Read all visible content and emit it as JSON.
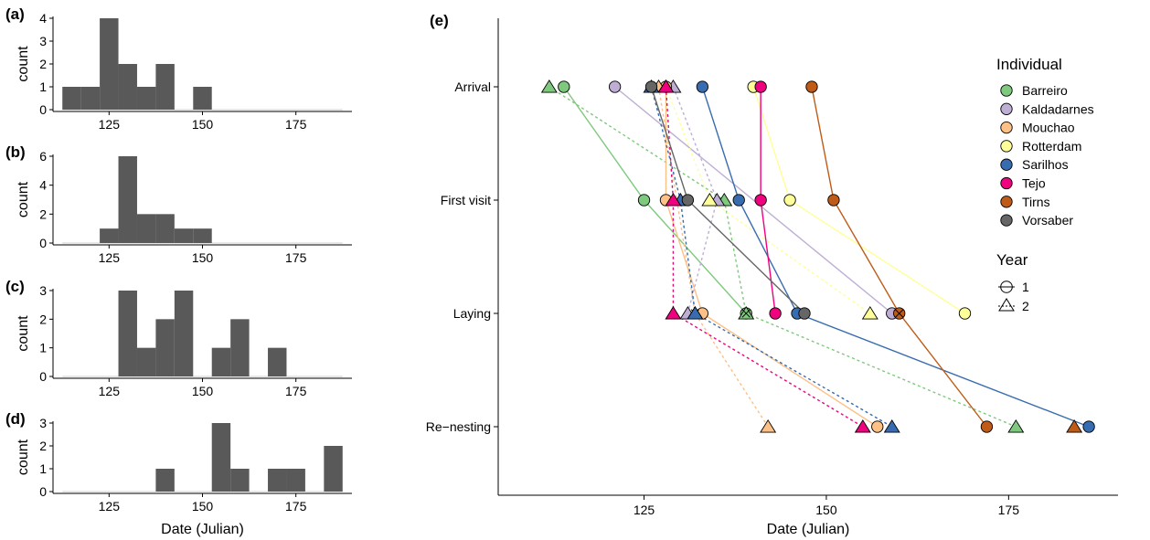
{
  "chart_data": [
    {
      "panel": "(a)",
      "type": "bar",
      "ylabel": "count",
      "xlim": [
        110,
        190
      ],
      "ylim": [
        0,
        4
      ],
      "xticks": [
        125,
        150,
        175
      ],
      "yticks": [
        0,
        1,
        2,
        3,
        4
      ],
      "bin_width": 5,
      "bins": [
        {
          "start": 112.5,
          "count": 1
        },
        {
          "start": 117.5,
          "count": 1
        },
        {
          "start": 122.5,
          "count": 4
        },
        {
          "start": 127.5,
          "count": 2
        },
        {
          "start": 132.5,
          "count": 1
        },
        {
          "start": 137.5,
          "count": 2
        },
        {
          "start": 147.5,
          "count": 1
        }
      ]
    },
    {
      "panel": "(b)",
      "type": "bar",
      "ylabel": "count",
      "xlim": [
        110,
        190
      ],
      "ylim": [
        0,
        6
      ],
      "xticks": [
        125,
        150,
        175
      ],
      "yticks": [
        0,
        2,
        4,
        6
      ],
      "bin_width": 5,
      "bins": [
        {
          "start": 122.5,
          "count": 1
        },
        {
          "start": 127.5,
          "count": 6
        },
        {
          "start": 132.5,
          "count": 2
        },
        {
          "start": 137.5,
          "count": 2
        },
        {
          "start": 142.5,
          "count": 1
        },
        {
          "start": 147.5,
          "count": 1
        }
      ]
    },
    {
      "panel": "(c)",
      "type": "bar",
      "ylabel": "count",
      "xlim": [
        110,
        190
      ],
      "ylim": [
        0,
        3
      ],
      "xticks": [
        125,
        150,
        175
      ],
      "yticks": [
        0,
        1,
        2,
        3
      ],
      "bin_width": 5,
      "bins": [
        {
          "start": 127.5,
          "count": 3
        },
        {
          "start": 132.5,
          "count": 1
        },
        {
          "start": 137.5,
          "count": 2
        },
        {
          "start": 142.5,
          "count": 3
        },
        {
          "start": 152.5,
          "count": 1
        },
        {
          "start": 157.5,
          "count": 2
        },
        {
          "start": 167.5,
          "count": 1
        }
      ]
    },
    {
      "panel": "(d)",
      "type": "bar",
      "ylabel": "count",
      "xlabel": "Date (Julian)",
      "xlim": [
        110,
        190
      ],
      "ylim": [
        0,
        3
      ],
      "xticks": [
        125,
        150,
        175
      ],
      "yticks": [
        0,
        1,
        2,
        3
      ],
      "bin_width": 5,
      "bins": [
        {
          "start": 137.5,
          "count": 1
        },
        {
          "start": 152.5,
          "count": 3
        },
        {
          "start": 157.5,
          "count": 1
        },
        {
          "start": 167.5,
          "count": 1
        },
        {
          "start": 172.5,
          "count": 1
        },
        {
          "start": 182.5,
          "count": 2
        }
      ]
    },
    {
      "panel": "(e)",
      "type": "scatter",
      "xlabel": "Date (Julian)",
      "xlim": [
        105,
        190
      ],
      "xticks": [
        125,
        150,
        175
      ],
      "stages": [
        "Arrival",
        "First visit",
        "Laying",
        "Re−nesting"
      ],
      "legend": {
        "individual_title": "Individual",
        "year_title": "Year",
        "year_labels": [
          "1",
          "2"
        ],
        "placement": "right"
      },
      "individuals": [
        {
          "name": "Barreiro",
          "color": "#7fc97f",
          "year1": [
            114,
            125,
            139,
            null
          ],
          "year2": [
            112,
            136,
            139,
            176
          ],
          "renest_failed": [
            false,
            true
          ]
        },
        {
          "name": "Kaldadarnes",
          "color": "#beaed4",
          "year1": [
            121,
            null,
            159,
            null
          ],
          "year2": [
            129,
            135,
            131,
            null
          ],
          "renest_failed": [
            false,
            false
          ]
        },
        {
          "name": "Mouchao",
          "color": "#fdc086",
          "year1": [
            128,
            128,
            133,
            157
          ],
          "year2": [
            127,
            null,
            132,
            142
          ],
          "renest_failed": [
            false,
            true
          ]
        },
        {
          "name": "Rotterdam",
          "color": "#ffff99",
          "year1": [
            140,
            145,
            169,
            null
          ],
          "year2": [
            128,
            134,
            156,
            null
          ],
          "renest_failed": [
            false,
            false
          ]
        },
        {
          "name": "Sarilhos",
          "color": "#386cb0",
          "year1": [
            133,
            138,
            146,
            186
          ],
          "year2": [
            126,
            130,
            132,
            159
          ],
          "renest_failed": [
            false,
            false
          ]
        },
        {
          "name": "Tejo",
          "color": "#f0027f",
          "year1": [
            141,
            141,
            143,
            null
          ],
          "year2": [
            128,
            129,
            129,
            155
          ],
          "renest_failed": [
            false,
            false
          ]
        },
        {
          "name": "Tirns",
          "color": "#bf5b17",
          "year1": [
            148,
            151,
            160,
            172
          ],
          "year2": [
            null,
            null,
            null,
            184
          ],
          "renest_failed": [
            true,
            false
          ]
        },
        {
          "name": "Vorsaber",
          "color": "#666666",
          "year1": [
            126,
            131,
            147,
            null
          ],
          "year2": [
            null,
            null,
            null,
            null
          ],
          "renest_failed": [
            false,
            false
          ]
        }
      ]
    }
  ]
}
